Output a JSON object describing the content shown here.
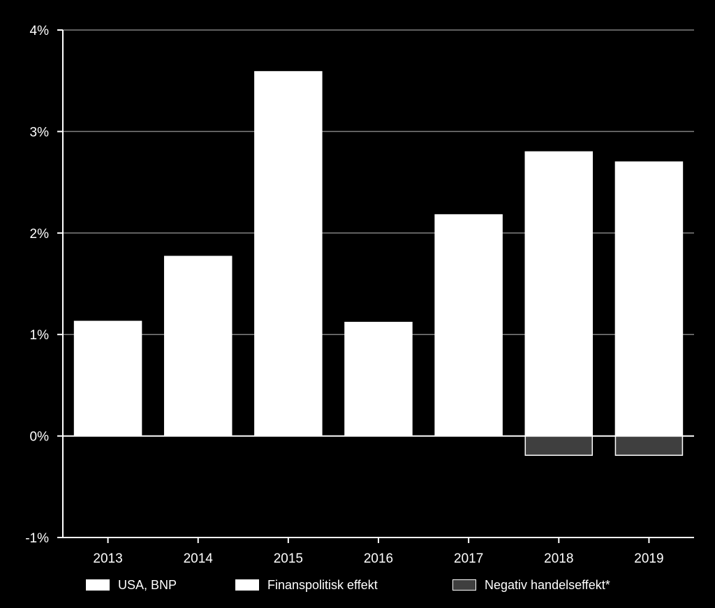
{
  "chart_data": {
    "type": "bar",
    "stacked": true,
    "categories": [
      "2013",
      "2014",
      "2015",
      "2016",
      "2017",
      "2018",
      "2019"
    ],
    "series": [
      {
        "name": "USA, BNP",
        "color": "#ffffff",
        "values": [
          1.13,
          1.77,
          3.59,
          1.12,
          2.18,
          2.8,
          2.7
        ]
      },
      {
        "name": "Finanspolitisk effekt",
        "color": "#ffffff",
        "values": [
          0,
          0,
          0,
          0,
          0,
          0,
          0
        ]
      },
      {
        "name": "Negativ handelseffekt*",
        "color": "#3f3f3f",
        "values": [
          0,
          0,
          0,
          0,
          0,
          -0.19,
          -0.19
        ]
      }
    ],
    "ylim": [
      -1,
      4
    ],
    "yticks": [
      -1,
      0,
      1,
      2,
      3,
      4
    ],
    "ytick_labels": [
      "-1%",
      "0%",
      "1%",
      "2%",
      "3%",
      "4%"
    ],
    "grid": true,
    "legend_position": "bottom",
    "background": "#000000",
    "gridline_color": "#808080"
  }
}
